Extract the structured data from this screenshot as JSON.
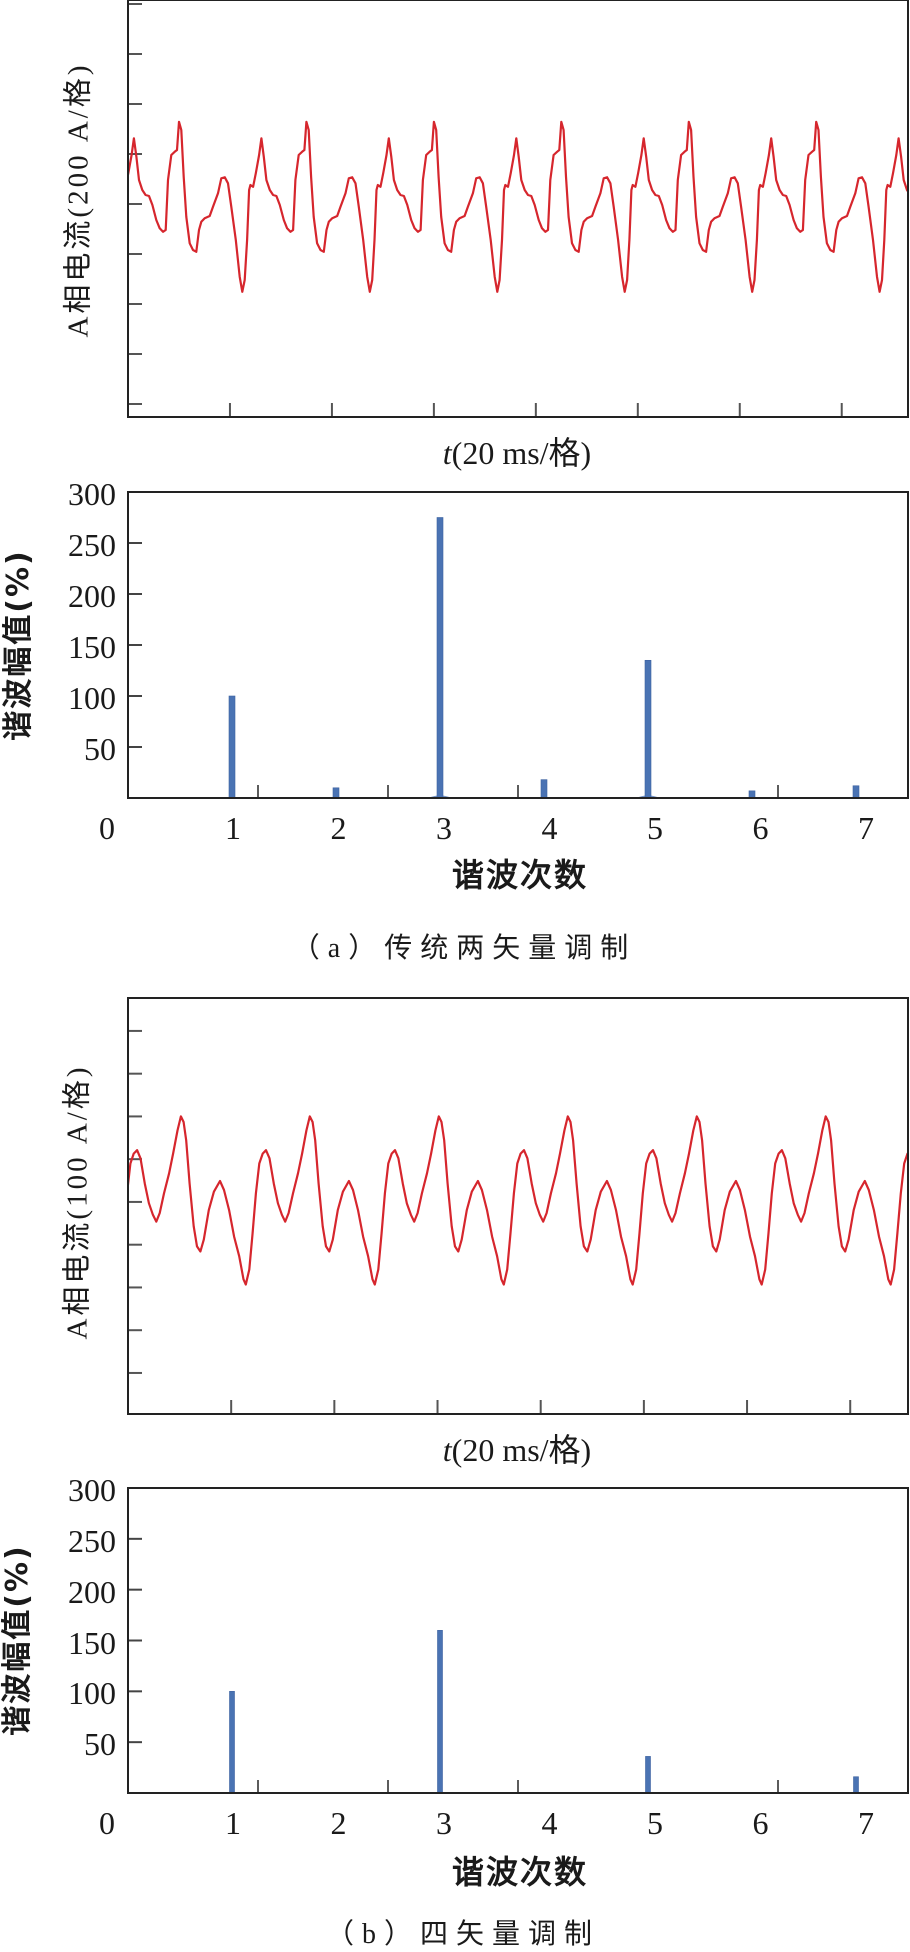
{
  "figure": {
    "captions": [
      "（a）传统两矢量调制",
      "（b）四矢量调制"
    ]
  },
  "chart_data": [
    {
      "panel": "a",
      "type": "line",
      "title": "",
      "xlabel": "t(20 ms/格)",
      "xlabel_var": "t",
      "xlabel_unit": "(20 ms/格)",
      "ylabel": "A相电流(200 A/格)",
      "x_unit": "ms",
      "y_unit": "A",
      "xlim": [
        0,
        153
      ],
      "ylim": [
        -852,
        816
      ],
      "xticks": [
        20,
        40,
        60,
        80,
        100,
        120,
        140
      ],
      "yticks": [
        -800,
        -600,
        -400,
        -200,
        0,
        200,
        400,
        600,
        800
      ],
      "grid": false,
      "series": [
        {
          "name": "A相电流",
          "color": "#d6262d",
          "periodic": true,
          "period_ms": 25,
          "first_peak_ms": 10.0,
          "template_period_ms": 25,
          "one_period_points": [
            [
              0,
              329
            ],
            [
              0.45,
              296
            ],
            [
              0.92,
              109
            ],
            [
              1.43,
              -51
            ],
            [
              2.1,
              -157
            ],
            [
              2.75,
              -184
            ],
            [
              3.4,
              -191
            ],
            [
              3.93,
              -104
            ],
            [
              4.38,
              -71
            ],
            [
              5.05,
              -57
            ],
            [
              6.03,
              -48
            ],
            [
              6.68,
              -11
            ],
            [
              7.66,
              43
            ],
            [
              8.31,
              103
            ],
            [
              8.98,
              107
            ],
            [
              9.62,
              83
            ],
            [
              10.27,
              -11
            ],
            [
              11.14,
              -144
            ],
            [
              11.92,
              -291
            ],
            [
              12.43,
              -351
            ],
            [
              12.9,
              -304
            ],
            [
              13.36,
              -144
            ],
            [
              13.75,
              56
            ],
            [
              14.0,
              76
            ],
            [
              14.53,
              69
            ],
            [
              15.06,
              123
            ],
            [
              15.71,
              196
            ],
            [
              16.16,
              263
            ],
            [
              16.64,
              189
            ],
            [
              17.15,
              96
            ],
            [
              17.81,
              56
            ],
            [
              18.46,
              36
            ],
            [
              19.11,
              32
            ],
            [
              19.78,
              -4
            ],
            [
              20.56,
              -64
            ],
            [
              21.21,
              -97
            ],
            [
              21.86,
              -111
            ],
            [
              22.39,
              -104
            ],
            [
              22.84,
              96
            ],
            [
              23.49,
              196
            ],
            [
              24.16,
              209
            ],
            [
              24.61,
              216
            ]
          ]
        }
      ]
    },
    {
      "panel": "a",
      "type": "bar",
      "title": "",
      "xlabel": "谐波次数",
      "ylabel": "谐波幅值(%)",
      "categories": [
        1,
        2,
        3,
        4,
        5,
        6,
        7
      ],
      "values": [
        100,
        10,
        275,
        18,
        135,
        7,
        12
      ],
      "color": "#4a73b3",
      "xlim": [
        0,
        7.5
      ],
      "ylim": [
        0,
        300
      ],
      "xticks": [
        0,
        1,
        2,
        3,
        4,
        5,
        6,
        7
      ],
      "yticks": [
        50,
        100,
        150,
        200,
        250,
        300
      ],
      "minor_xticks": [
        1.25,
        2.5,
        3.75,
        5,
        6.25
      ],
      "leakage": [
        {
          "harmonic": 3,
          "value": 3
        },
        {
          "harmonic": 5,
          "value": 3
        }
      ],
      "grid": false
    },
    {
      "panel": "b",
      "type": "line",
      "title": "",
      "xlabel": "t(20 ms/格)",
      "xlabel_var": "t",
      "xlabel_unit": "(20 ms/格)",
      "ylabel": "A相电流(100 A/格)",
      "x_unit": "ms",
      "y_unit": "A",
      "xlim": [
        0,
        151.2
      ],
      "ylim": [
        -496,
        477
      ],
      "xticks": [
        20,
        40,
        60,
        80,
        100,
        120,
        140
      ],
      "yticks": [
        -400,
        -300,
        -200,
        -100,
        0,
        100,
        200,
        300,
        400
      ],
      "grid": false,
      "series": [
        {
          "name": "A相电流",
          "color": "#d6262d",
          "periodic": true,
          "period_ms": 25,
          "first_peak_ms": 10.25,
          "template_period_ms": 25,
          "one_period_points": [
            [
              0,
              200
            ],
            [
              0.53,
              187
            ],
            [
              1.04,
              144
            ],
            [
              1.7,
              43
            ],
            [
              2.49,
              -57
            ],
            [
              3.13,
              -104
            ],
            [
              3.78,
              -116
            ],
            [
              4.44,
              -88
            ],
            [
              5.42,
              -19
            ],
            [
              6.4,
              24
            ],
            [
              7.58,
              49
            ],
            [
              8.36,
              28
            ],
            [
              9.34,
              -19
            ],
            [
              10.32,
              -81
            ],
            [
              11.3,
              -127
            ],
            [
              12.14,
              -181
            ],
            [
              12.59,
              -193
            ],
            [
              13.26,
              -158
            ],
            [
              13.9,
              -73
            ],
            [
              14.55,
              20
            ],
            [
              15.21,
              90
            ],
            [
              15.86,
              113
            ],
            [
              16.51,
              121
            ],
            [
              17.17,
              102
            ],
            [
              18.01,
              43
            ],
            [
              18.8,
              -3
            ],
            [
              19.58,
              -30
            ],
            [
              20.23,
              -46
            ],
            [
              20.89,
              -26
            ],
            [
              21.73,
              20
            ],
            [
              22.71,
              67
            ],
            [
              23.5,
              113
            ],
            [
              24.34,
              167
            ]
          ]
        }
      ]
    },
    {
      "panel": "b",
      "type": "bar",
      "title": "",
      "xlabel": "谐波次数",
      "ylabel": "谐波幅值(%)",
      "categories": [
        1,
        2,
        3,
        4,
        5,
        6,
        7
      ],
      "values": [
        100,
        0,
        160,
        0,
        36,
        0,
        16
      ],
      "color": "#4a73b3",
      "xlim": [
        0,
        7.5
      ],
      "ylim": [
        0,
        300
      ],
      "xticks": [
        0,
        1,
        2,
        3,
        4,
        5,
        6,
        7
      ],
      "yticks": [
        50,
        100,
        150,
        200,
        250,
        300
      ],
      "minor_xticks": [
        1.25,
        2.5,
        3.75,
        5,
        6.25
      ],
      "leakage": [],
      "grid": false
    }
  ]
}
